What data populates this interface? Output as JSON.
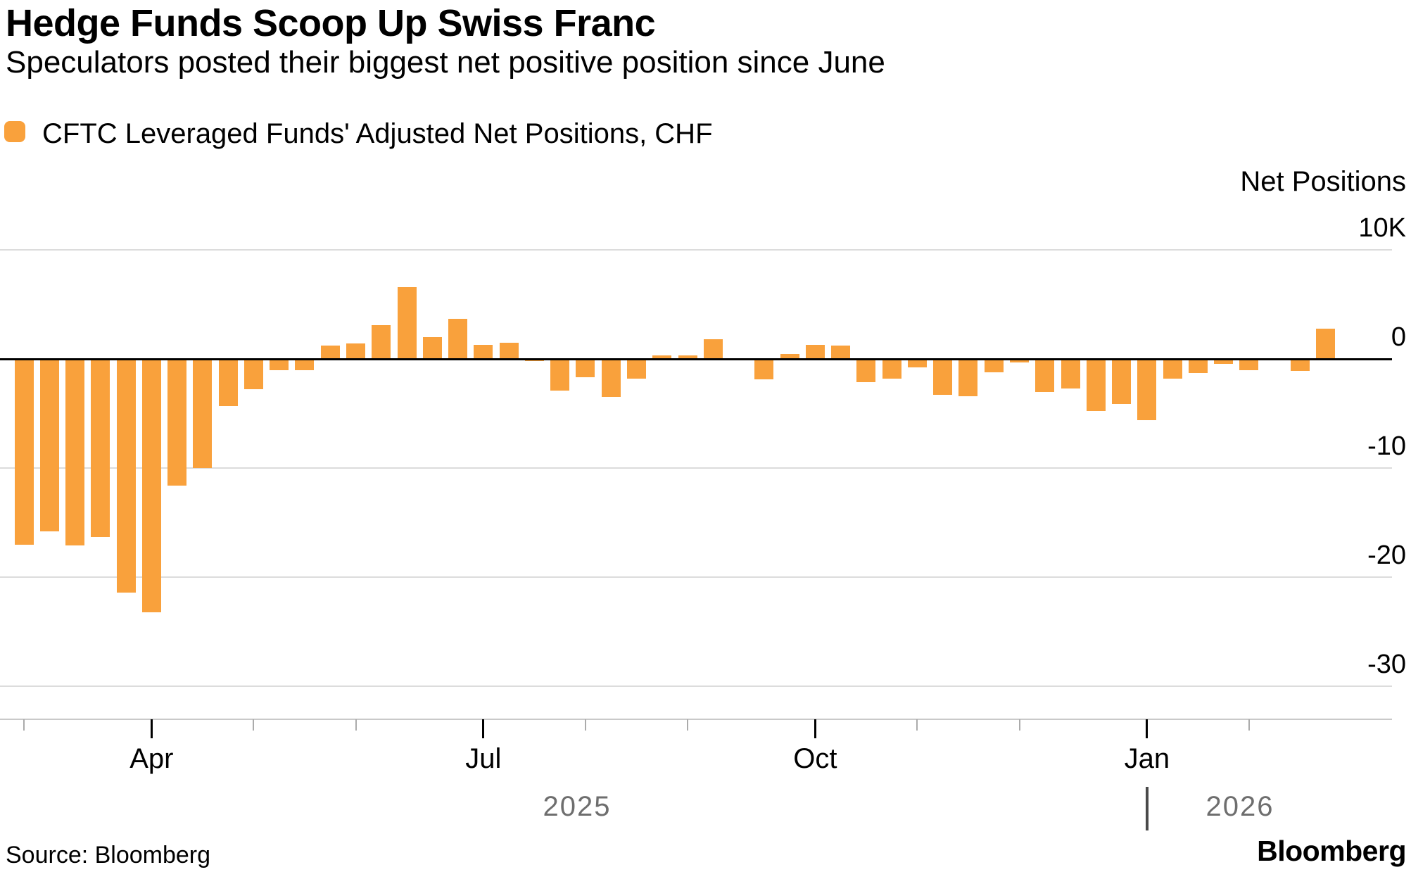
{
  "header": {
    "title": "Hedge Funds Scoop Up Swiss Franc",
    "subtitle": "Speculators posted their biggest net positive position since June"
  },
  "legend": {
    "label": "CFTC Leveraged Funds' Adjusted Net Positions, CHF",
    "swatch_color": "#F9A13C"
  },
  "axis": {
    "title": "Net Positions"
  },
  "footer": {
    "source": "Source: Bloomberg",
    "brand": "Bloomberg"
  },
  "colors": {
    "bar": "#F9A13C",
    "zero_line": "#000000",
    "gridline": "#DCDCDC",
    "axis_line": "#C9C9C9",
    "major_tick": "#000000",
    "minor_tick": "#ABABAB",
    "year_text": "#6E6E6E"
  },
  "chart_data": {
    "type": "bar",
    "title": "Hedge Funds Scoop Up Swiss Franc",
    "subtitle": "Speculators posted their biggest net positive position since June",
    "series_name": "CFTC Leveraged Funds' Adjusted Net Positions, CHF",
    "ylabel": "Net Positions",
    "unit": "thousands of contracts (K)",
    "frequency": "weekly",
    "x_span": "Mar 2025 - Feb 2026",
    "ylim": [
      -30,
      10
    ],
    "grid": "horizontal",
    "legend_position": "top-left",
    "y_axis_side": "right",
    "values": [
      -17.0,
      -15.8,
      -17.1,
      -16.3,
      -21.4,
      -23.2,
      -11.6,
      -10.0,
      -4.3,
      -2.8,
      -1.0,
      -1.0,
      1.2,
      1.4,
      3.1,
      6.6,
      2.0,
      3.7,
      1.3,
      1.5,
      -0.2,
      -2.9,
      -1.7,
      -3.5,
      -1.8,
      0.35,
      0.35,
      1.8,
      -0.15,
      -1.9,
      0.45,
      1.3,
      1.2,
      -2.1,
      -1.8,
      -0.8,
      -3.3,
      -3.4,
      -1.2,
      -0.3,
      -3.0,
      -2.7,
      -4.8,
      -4.1,
      -5.6,
      -1.8,
      -1.3,
      -0.45,
      -1.0,
      -0.15,
      -1.1,
      2.8
    ],
    "y_gridlines": [
      {
        "value": 10,
        "label": "10K"
      },
      {
        "value": 0,
        "label": "0"
      },
      {
        "value": -10,
        "label": "-10"
      },
      {
        "value": -20,
        "label": "-20"
      },
      {
        "value": -30,
        "label": "-30"
      }
    ],
    "x_ticks": [
      {
        "week": 0,
        "label": ""
      },
      {
        "week": 5,
        "label": "Apr"
      },
      {
        "week": 9,
        "label": ""
      },
      {
        "week": 13,
        "label": ""
      },
      {
        "week": 18,
        "label": "Jul"
      },
      {
        "week": 22,
        "label": ""
      },
      {
        "week": 26,
        "label": ""
      },
      {
        "week": 31,
        "label": "Oct"
      },
      {
        "week": 35,
        "label": ""
      },
      {
        "week": 39,
        "label": ""
      },
      {
        "week": 44,
        "label": "Jan"
      },
      {
        "week": 48,
        "label": ""
      }
    ],
    "year_labels": [
      "2025",
      "2026"
    ]
  }
}
